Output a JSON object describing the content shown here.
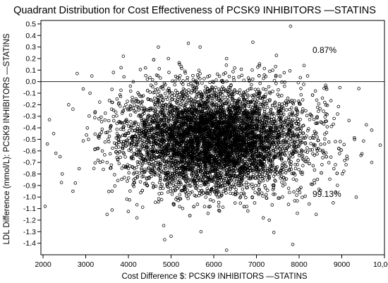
{
  "chart_data": {
    "type": "scatter",
    "title": "Quadrant Distribution for Cost Effectiveness of PCSK9 INHIBITORS —STATINS",
    "xlabel": "Cost Difference $: PCSK9 INHIBITORS —STATINS",
    "ylabel": "LDL Difference (mmol/L): PCSK9 INHIBITORS —STATINS",
    "xlim": [
      1950,
      10000
    ],
    "ylim": [
      -1.5,
      0.53
    ],
    "x_ticks": [
      2000,
      3000,
      4000,
      5000,
      6000,
      7000,
      8000,
      9000,
      10000
    ],
    "x_tick_labels": [
      "2000",
      "3000",
      "4000",
      "5000",
      "6000",
      "7000",
      "8000",
      "9000",
      "10,000"
    ],
    "y_ticks": [
      0.5,
      0.4,
      0.3,
      0.2,
      0.1,
      0.0,
      -0.1,
      -0.2,
      -0.3,
      -0.4,
      -0.5,
      -0.6,
      -0.7,
      -0.8,
      -0.9,
      -1.0,
      -1.1,
      -1.2,
      -1.3,
      -1.4
    ],
    "y_tick_labels": [
      "0.5",
      "0.4",
      "0.3",
      "0.2",
      "0.1",
      "0.0",
      "-0.1",
      "-0.2",
      "-0.3",
      "-0.4",
      "-0.5",
      "-0.6",
      "-0.7",
      "-0.8",
      "-0.9",
      "-1.0",
      "-1.1",
      "-1.2",
      "-1.3",
      "-1.4"
    ],
    "reference_line_y": 0.0,
    "grid": false,
    "annotations": [
      "0.87%",
      "99.13%"
    ],
    "marker": "open-circle",
    "distribution": {
      "n_points": 6000,
      "x_mean": 6000,
      "x_sd": 1050,
      "y_mean": -0.5,
      "y_sd": 0.22
    },
    "points": [
      [
        7800,
        0.48
      ],
      [
        5680,
        0.3
      ],
      [
        3880,
        0.22
      ],
      [
        4700,
        0.3
      ],
      [
        6300,
        0.2
      ],
      [
        2800,
        0.07
      ],
      [
        7450,
        0.13
      ],
      [
        3650,
        0.08
      ],
      [
        5200,
        0.15
      ],
      [
        6900,
        0.1
      ],
      [
        4400,
        0.12
      ],
      [
        8200,
        0.05
      ],
      [
        5900,
        0.05
      ],
      [
        4950,
        0.08
      ],
      [
        9400,
        -0.06
      ],
      [
        2150,
        -0.33
      ],
      [
        2250,
        -0.45
      ],
      [
        2400,
        -0.65
      ],
      [
        2100,
        -0.54
      ],
      [
        2050,
        -1.08
      ],
      [
        2450,
        -0.8
      ],
      [
        2700,
        -0.95
      ],
      [
        3500,
        -1.15
      ],
      [
        4200,
        -1.18
      ],
      [
        4850,
        -1.37
      ],
      [
        5000,
        -1.34
      ],
      [
        5700,
        -1.3
      ],
      [
        6300,
        -1.46
      ],
      [
        7850,
        -1.41
      ],
      [
        6800,
        -1.12
      ],
      [
        7300,
        -1.2
      ],
      [
        9700,
        -0.7
      ],
      [
        9450,
        -0.64
      ],
      [
        9700,
        -0.42
      ],
      [
        9100,
        -0.72
      ],
      [
        9300,
        -0.5
      ],
      [
        8800,
        -1.05
      ],
      [
        8400,
        -1.15
      ],
      [
        9900,
        -0.55
      ],
      [
        8600,
        -0.18
      ],
      [
        8900,
        -0.28
      ],
      [
        2600,
        -0.2
      ],
      [
        3100,
        -0.1
      ],
      [
        2300,
        -0.62
      ]
    ]
  }
}
